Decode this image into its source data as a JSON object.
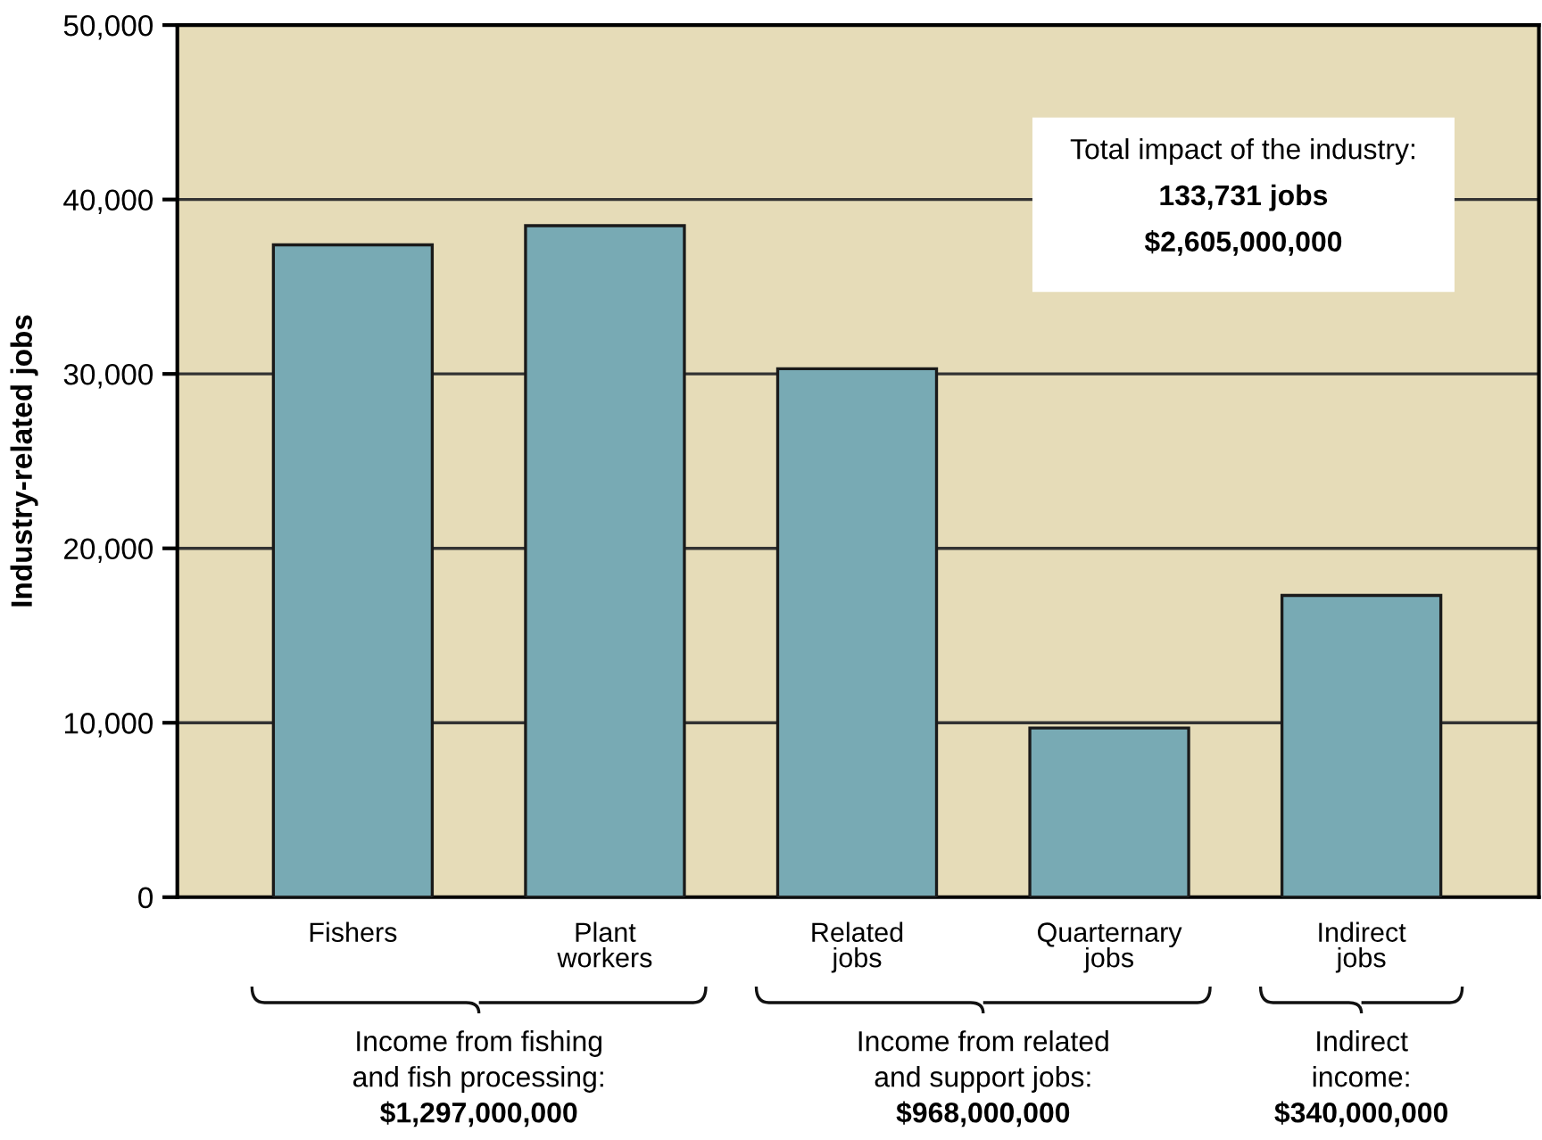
{
  "chart_data": {
    "type": "bar",
    "ylabel": "Industry-related jobs",
    "categories": [
      "Fishers",
      "Plant\nworkers",
      "Related\njobs",
      "Quarternary\njobs",
      "Indirect\njobs"
    ],
    "values": [
      37400,
      38500,
      30300,
      9700,
      17300
    ],
    "color": "#78aab4",
    "ylim": [
      0,
      50000
    ],
    "yticks": [
      {
        "value": 0,
        "label": "0"
      },
      {
        "value": 10000,
        "label": "10,000"
      },
      {
        "value": 20000,
        "label": "20,000"
      },
      {
        "value": 30000,
        "label": "30,000"
      },
      {
        "value": 40000,
        "label": "40,000"
      },
      {
        "value": 50000,
        "label": "50,000"
      }
    ],
    "grid": "y",
    "annotations": [
      "Total impact of the industry:\n133,731 jobs\n$2,605,000,000",
      "Income from fishing\nand fish processing:\n$1,297,000,000",
      "Income from related\nand support jobs:\n$968,000,000",
      "Indirect\nincome:\n$340,000,000"
    ]
  }
}
